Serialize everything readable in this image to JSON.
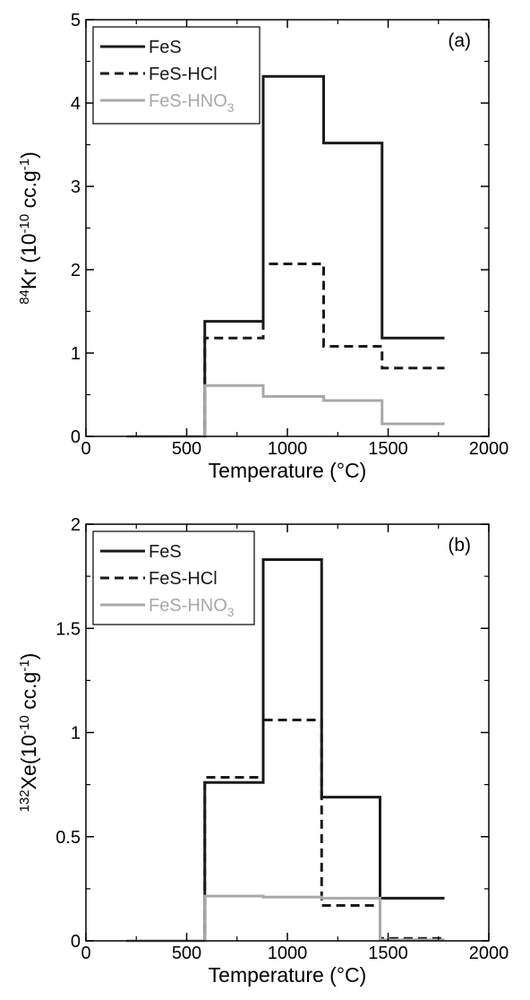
{
  "chart_data": [
    {
      "type": "line",
      "step": true,
      "panel_label": "(a)",
      "xlabel": "Temperature (°C)",
      "ylabel": {
        "prefix_sup": "84",
        "main": "Kr (10",
        "exp_sup": "-10",
        "mid": " cc.g",
        "unit_sup": "-1",
        "suffix": ")"
      },
      "xlim": [
        0,
        2000
      ],
      "ylim": [
        0,
        5
      ],
      "xticks": [
        0,
        500,
        1000,
        1500,
        2000
      ],
      "yticks": [
        0,
        1,
        2,
        3,
        4,
        5
      ],
      "x_tick_labels": [
        "0",
        "500",
        "1000",
        "1500",
        "2000"
      ],
      "y_tick_labels": [
        "0",
        "1",
        "2",
        "3",
        "4",
        "5"
      ],
      "grid": false,
      "legend_position": "top-left",
      "start_x": 200,
      "series": [
        {
          "name": "FeS",
          "color": "#1a1a1a",
          "style": "solid",
          "steps": [
            [
              200,
              590,
              0
            ],
            [
              590,
              880,
              1.38
            ],
            [
              880,
              1180,
              4.32
            ],
            [
              1180,
              1470,
              3.52
            ],
            [
              1470,
              1780,
              1.18
            ]
          ]
        },
        {
          "name": "FeS-HCl",
          "color": "#1a1a1a",
          "style": "dashed",
          "steps": [
            [
              200,
              590,
              0
            ],
            [
              590,
              880,
              1.18
            ],
            [
              880,
              1180,
              2.07
            ],
            [
              1180,
              1470,
              1.08
            ],
            [
              1470,
              1780,
              0.82
            ]
          ]
        },
        {
          "name": "FeS-HNO",
          "name_sub": "3",
          "color": "#a8a8a8",
          "style": "solid",
          "steps": [
            [
              200,
              590,
              0
            ],
            [
              590,
              880,
              0.61
            ],
            [
              880,
              1180,
              0.48
            ],
            [
              1180,
              1470,
              0.43
            ],
            [
              1470,
              1780,
              0.15
            ]
          ]
        }
      ]
    },
    {
      "type": "line",
      "step": true,
      "panel_label": "(b)",
      "xlabel": "Temperature (°C)",
      "ylabel": {
        "prefix_sup": "132",
        "main": "Xe(10",
        "exp_sup": "-10",
        "mid": " cc.g",
        "unit_sup": "-1",
        "suffix": ")"
      },
      "xlim": [
        0,
        2000
      ],
      "ylim": [
        0,
        2
      ],
      "xticks": [
        0,
        500,
        1000,
        1500,
        2000
      ],
      "yticks": [
        0,
        0.5,
        1,
        1.5,
        2
      ],
      "x_tick_labels": [
        "0",
        "500",
        "1000",
        "1500",
        "2000"
      ],
      "y_tick_labels": [
        "0",
        "0.5",
        "1",
        "1.5",
        "2"
      ],
      "grid": false,
      "legend_position": "top-left",
      "series": [
        {
          "name": "FeS",
          "color": "#1a1a1a",
          "style": "solid",
          "steps": [
            [
              200,
              590,
              0
            ],
            [
              590,
              880,
              0.76
            ],
            [
              880,
              1170,
              1.83
            ],
            [
              1170,
              1460,
              0.69
            ],
            [
              1460,
              1780,
              0.205
            ]
          ]
        },
        {
          "name": "FeS-HCl",
          "color": "#1a1a1a",
          "style": "dashed",
          "steps": [
            [
              200,
              590,
              0
            ],
            [
              590,
              880,
              0.785
            ],
            [
              880,
              1170,
              1.06
            ],
            [
              1170,
              1460,
              0.17
            ],
            [
              1460,
              1780,
              0.012
            ]
          ]
        },
        {
          "name": "FeS-HNO",
          "name_sub": "3",
          "color": "#a8a8a8",
          "style": "solid",
          "steps": [
            [
              200,
              590,
              0
            ],
            [
              590,
              880,
              0.215
            ],
            [
              880,
              1170,
              0.21
            ],
            [
              1170,
              1460,
              0.205
            ],
            [
              1460,
              1780,
              0.005
            ]
          ]
        }
      ]
    }
  ]
}
